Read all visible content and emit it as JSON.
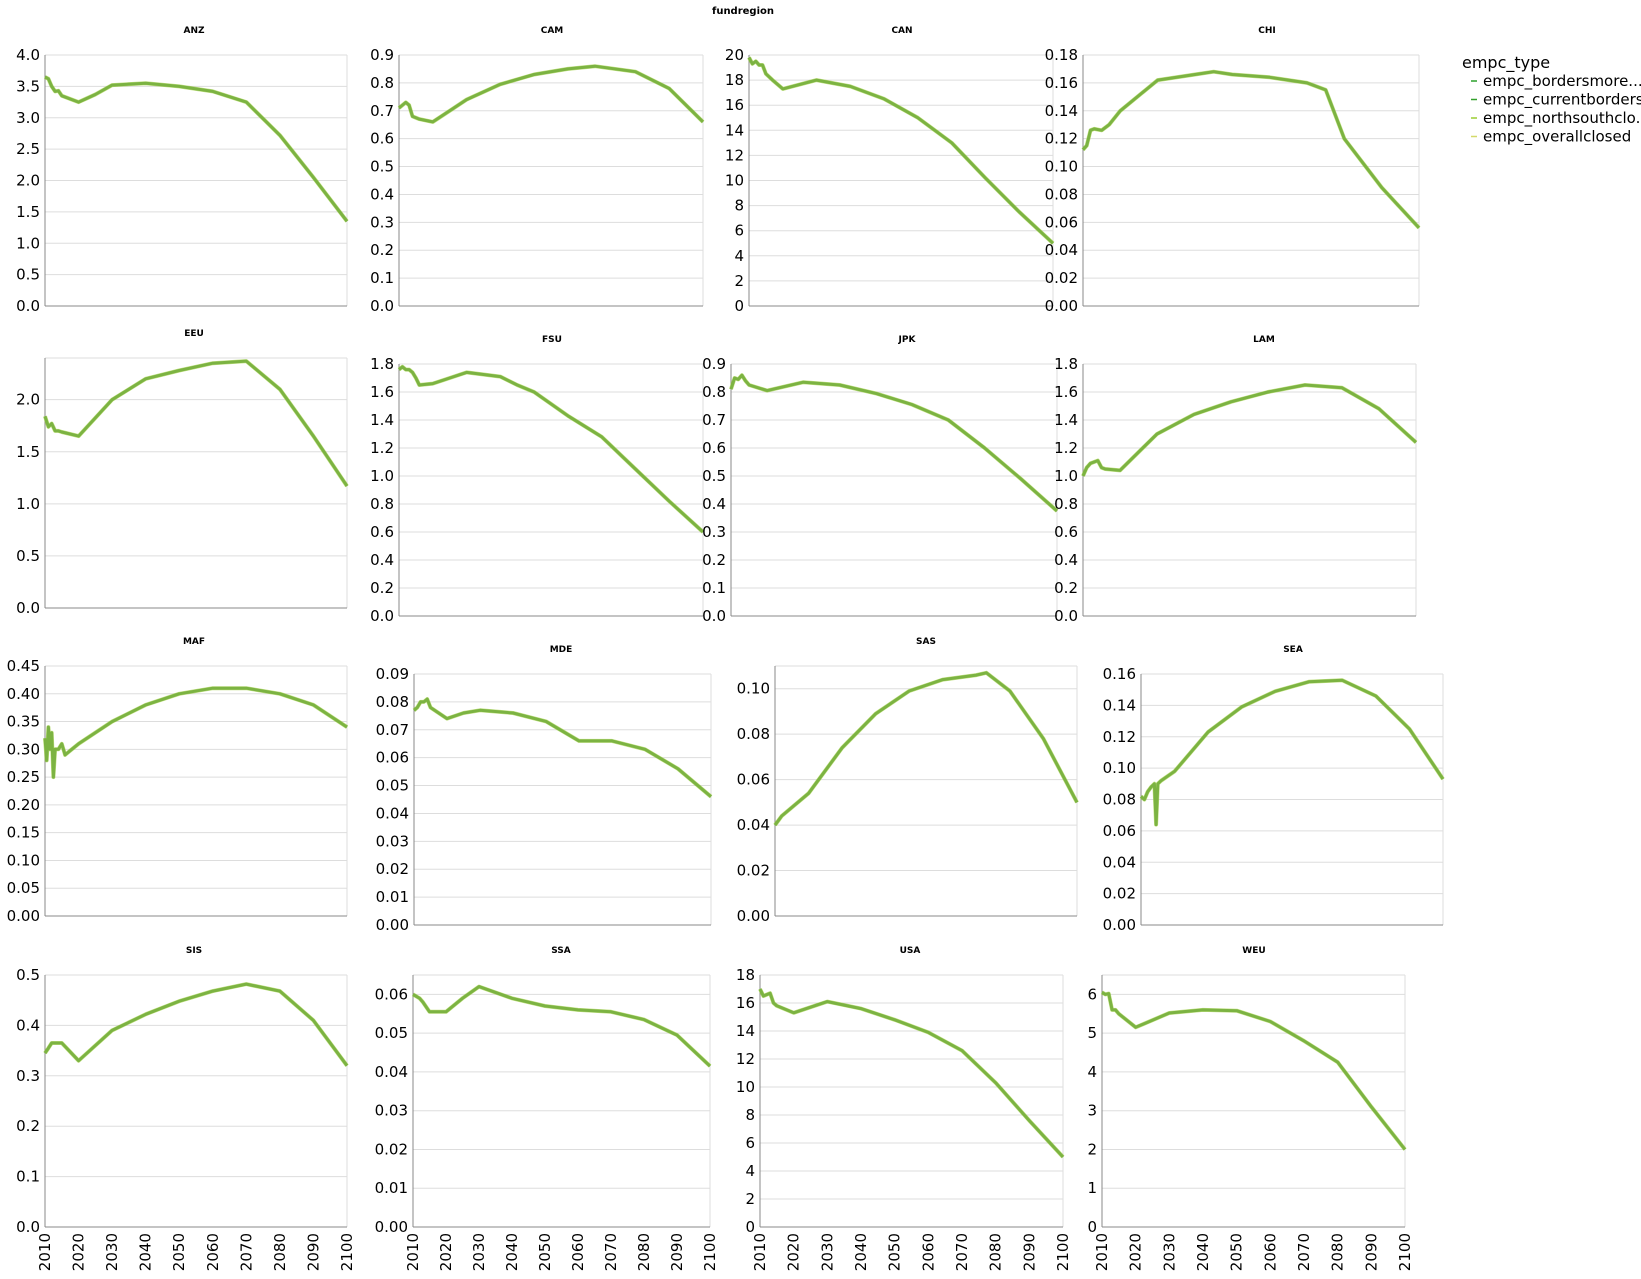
{
  "figure_title": "fundregion",
  "legend": {
    "title": "empc_type",
    "items": [
      {
        "label": "empc_bordersmore...",
        "color": "#2ca02c"
      },
      {
        "label": "empc_currentborders",
        "color": "#33a02c"
      },
      {
        "label": "empc_northsouthclo...",
        "color": "#9acd32"
      },
      {
        "label": "empc_overallclosed",
        "color": "#d4d96a"
      }
    ]
  },
  "colors": {
    "line": "#7cb342",
    "grid": "#dddddd",
    "axis": "#888888"
  },
  "chart_data": [
    {
      "type": "line",
      "title": "ANZ",
      "xlim": [
        2010,
        2100
      ],
      "ylim": [
        0,
        4
      ],
      "x_ticks": [
        "2010",
        "2020",
        "2030",
        "2040",
        "2050",
        "2060",
        "2070",
        "2080",
        "2090",
        "2100"
      ],
      "y_ticks": [
        "0.0",
        "0.5",
        "1.0",
        "1.5",
        "2.0",
        "2.5",
        "3.0",
        "3.5",
        "4.0"
      ],
      "y_tick_values": [
        0,
        0.5,
        1,
        1.5,
        2,
        2.5,
        3,
        3.5,
        4
      ],
      "x": [
        2010,
        2011,
        2012,
        2013,
        2014,
        2015,
        2020,
        2025,
        2030,
        2040,
        2050,
        2060,
        2070,
        2080,
        2090,
        2100
      ],
      "y": [
        3.65,
        3.62,
        3.5,
        3.42,
        3.43,
        3.35,
        3.25,
        3.37,
        3.52,
        3.55,
        3.5,
        3.42,
        3.25,
        2.72,
        2.05,
        1.35
      ]
    },
    {
      "type": "line",
      "title": "CAM",
      "xlim": [
        2010,
        2100
      ],
      "ylim": [
        0,
        0.9
      ],
      "x_ticks": [
        "2010",
        "2020",
        "2030",
        "2040",
        "2050",
        "2060",
        "2070",
        "2080",
        "2090",
        "2100"
      ],
      "y_ticks": [
        "0.0",
        "0.1",
        "0.2",
        "0.3",
        "0.4",
        "0.5",
        "0.6",
        "0.7",
        "0.8",
        "0.9"
      ],
      "y_tick_values": [
        0,
        0.1,
        0.2,
        0.3,
        0.4,
        0.5,
        0.6,
        0.7,
        0.8,
        0.9
      ],
      "x": [
        2010,
        2012,
        2013,
        2014,
        2016,
        2020,
        2025,
        2030,
        2040,
        2050,
        2060,
        2068,
        2080,
        2090,
        2100
      ],
      "y": [
        0.71,
        0.73,
        0.72,
        0.68,
        0.67,
        0.66,
        0.7,
        0.74,
        0.795,
        0.83,
        0.85,
        0.86,
        0.84,
        0.78,
        0.66
      ]
    },
    {
      "type": "line",
      "title": "CAN",
      "xlim": [
        2010,
        2100
      ],
      "ylim": [
        0,
        20
      ],
      "x_ticks": [
        "2010",
        "2020",
        "2030",
        "2040",
        "2050",
        "2060",
        "2070",
        "2080",
        "2090",
        "2100"
      ],
      "y_ticks": [
        "0",
        "2",
        "4",
        "6",
        "8",
        "10",
        "12",
        "14",
        "16",
        "18",
        "20"
      ],
      "y_tick_values": [
        0,
        2,
        4,
        6,
        8,
        10,
        12,
        14,
        16,
        18,
        20
      ],
      "x": [
        2010,
        2011,
        2012,
        2013,
        2014,
        2015,
        2017,
        2020,
        2030,
        2040,
        2050,
        2060,
        2070,
        2080,
        2090,
        2100
      ],
      "y": [
        19.8,
        19.3,
        19.5,
        19.2,
        19.2,
        18.5,
        18.0,
        17.3,
        18.0,
        17.5,
        16.5,
        15.0,
        13.0,
        10.2,
        7.5,
        5.0
      ]
    },
    {
      "type": "line",
      "title": "CHI",
      "xlim": [
        2010,
        2100
      ],
      "ylim": [
        0,
        0.18
      ],
      "x_ticks": [
        "2010",
        "2020",
        "2030",
        "2040",
        "2050",
        "2060",
        "2070",
        "2080",
        "2090",
        "2100"
      ],
      "y_ticks": [
        "0.00",
        "0.02",
        "0.04",
        "0.06",
        "0.08",
        "0.10",
        "0.12",
        "0.14",
        "0.16",
        "0.18"
      ],
      "y_tick_values": [
        0,
        0.02,
        0.04,
        0.06,
        0.08,
        0.1,
        0.12,
        0.14,
        0.16,
        0.18
      ],
      "x": [
        2010,
        2011,
        2012,
        2013,
        2015,
        2017,
        2020,
        2030,
        2040,
        2045,
        2050,
        2060,
        2070,
        2075,
        2080,
        2090,
        2100
      ],
      "y": [
        0.112,
        0.115,
        0.126,
        0.127,
        0.126,
        0.13,
        0.14,
        0.162,
        0.166,
        0.168,
        0.166,
        0.164,
        0.16,
        0.155,
        0.12,
        0.085,
        0.056
      ]
    },
    {
      "type": "line",
      "title": "EEU",
      "xlim": [
        2010,
        2100
      ],
      "ylim": [
        0,
        2.4
      ],
      "x_ticks": [
        "2010",
        "2020",
        "2030",
        "2040",
        "2050",
        "2060",
        "2070",
        "2080",
        "2090",
        "2100"
      ],
      "y_ticks": [
        "0.0",
        "0.5",
        "1.0",
        "1.5",
        "2.0"
      ],
      "y_tick_values": [
        0,
        0.5,
        1,
        1.5,
        2
      ],
      "x": [
        2010,
        2011,
        2012,
        2013,
        2014,
        2015,
        2020,
        2030,
        2040,
        2050,
        2060,
        2070,
        2080,
        2090,
        2100
      ],
      "y": [
        1.84,
        1.74,
        1.77,
        1.7,
        1.7,
        1.69,
        1.65,
        2.0,
        2.2,
        2.28,
        2.35,
        2.37,
        2.1,
        1.65,
        1.17
      ]
    },
    {
      "type": "line",
      "title": "FSU",
      "xlim": [
        2010,
        2100
      ],
      "ylim": [
        0,
        1.8
      ],
      "x_ticks": [
        "2010",
        "2020",
        "2030",
        "2040",
        "2050",
        "2060",
        "2070",
        "2080",
        "2090",
        "2100"
      ],
      "y_ticks": [
        "0.0",
        "0.2",
        "0.4",
        "0.6",
        "0.8",
        "1.0",
        "1.2",
        "1.4",
        "1.6",
        "1.8"
      ],
      "y_tick_values": [
        0,
        0.2,
        0.4,
        0.6,
        0.8,
        1,
        1.2,
        1.4,
        1.6,
        1.8
      ],
      "x": [
        2010,
        2011,
        2012,
        2013,
        2014,
        2015,
        2016,
        2020,
        2025,
        2030,
        2040,
        2045,
        2050,
        2060,
        2070,
        2080,
        2090,
        2100
      ],
      "y": [
        1.76,
        1.78,
        1.76,
        1.76,
        1.74,
        1.7,
        1.65,
        1.66,
        1.7,
        1.74,
        1.71,
        1.65,
        1.6,
        1.43,
        1.28,
        1.05,
        0.82,
        0.6
      ]
    },
    {
      "type": "line",
      "title": "JPK",
      "xlim": [
        2010,
        2100
      ],
      "ylim": [
        0,
        0.9
      ],
      "x_ticks": [
        "2010",
        "2020",
        "2030",
        "2040",
        "2050",
        "2060",
        "2070",
        "2080",
        "2090",
        "2100"
      ],
      "y_ticks": [
        "0.0",
        "0.1",
        "0.2",
        "0.3",
        "0.4",
        "0.5",
        "0.6",
        "0.7",
        "0.8",
        "0.9"
      ],
      "y_tick_values": [
        0,
        0.1,
        0.2,
        0.3,
        0.4,
        0.5,
        0.6,
        0.7,
        0.8,
        0.9
      ],
      "x": [
        2010,
        2011,
        2012,
        2013,
        2014,
        2015,
        2020,
        2030,
        2040,
        2050,
        2060,
        2070,
        2080,
        2090,
        2100
      ],
      "y": [
        0.81,
        0.85,
        0.845,
        0.86,
        0.84,
        0.825,
        0.805,
        0.835,
        0.825,
        0.795,
        0.755,
        0.7,
        0.6,
        0.49,
        0.375
      ]
    },
    {
      "type": "line",
      "title": "LAM",
      "xlim": [
        2010,
        2100
      ],
      "ylim": [
        0,
        1.8
      ],
      "x_ticks": [
        "2010",
        "2020",
        "2030",
        "2040",
        "2050",
        "2060",
        "2070",
        "2080",
        "2090",
        "2100"
      ],
      "y_ticks": [
        "0.0",
        "0.2",
        "0.4",
        "0.6",
        "0.8",
        "1.0",
        "1.2",
        "1.4",
        "1.6",
        "1.8"
      ],
      "y_tick_values": [
        0,
        0.2,
        0.4,
        0.6,
        0.8,
        1,
        1.2,
        1.4,
        1.6,
        1.8
      ],
      "x": [
        2010,
        2011,
        2012,
        2013,
        2014,
        2015,
        2016,
        2020,
        2030,
        2040,
        2050,
        2060,
        2070,
        2080,
        2090,
        2100
      ],
      "y": [
        1.0,
        1.06,
        1.09,
        1.1,
        1.11,
        1.06,
        1.05,
        1.04,
        1.3,
        1.44,
        1.53,
        1.6,
        1.65,
        1.63,
        1.48,
        1.24
      ]
    },
    {
      "type": "line",
      "title": "MAF",
      "xlim": [
        2010,
        2100
      ],
      "ylim": [
        0,
        0.45
      ],
      "x_ticks": [
        "2010",
        "2020",
        "2030",
        "2040",
        "2050",
        "2060",
        "2070",
        "2080",
        "2090",
        "2100"
      ],
      "y_ticks": [
        "0.00",
        "0.05",
        "0.10",
        "0.15",
        "0.20",
        "0.25",
        "0.30",
        "0.35",
        "0.40",
        "0.45"
      ],
      "y_tick_values": [
        0,
        0.05,
        0.1,
        0.15,
        0.2,
        0.25,
        0.3,
        0.35,
        0.4,
        0.45
      ],
      "x": [
        2010,
        2010.5,
        2011,
        2011.5,
        2012,
        2012.5,
        2013,
        2014,
        2015,
        2016,
        2018,
        2020,
        2025,
        2030,
        2040,
        2050,
        2060,
        2070,
        2080,
        2090,
        2100
      ],
      "y": [
        0.32,
        0.28,
        0.34,
        0.3,
        0.33,
        0.25,
        0.3,
        0.3,
        0.31,
        0.29,
        0.3,
        0.31,
        0.33,
        0.35,
        0.38,
        0.4,
        0.41,
        0.41,
        0.4,
        0.38,
        0.34
      ]
    },
    {
      "type": "line",
      "title": "MDE",
      "xlim": [
        2010,
        2100
      ],
      "ylim": [
        0,
        0.09
      ],
      "x_ticks": [
        "2010",
        "2020",
        "2030",
        "2040",
        "2050",
        "2060",
        "2070",
        "2080",
        "2090",
        "2100"
      ],
      "y_ticks": [
        "0.00",
        "0.01",
        "0.02",
        "0.03",
        "0.04",
        "0.05",
        "0.06",
        "0.07",
        "0.08",
        "0.09"
      ],
      "y_tick_values": [
        0,
        0.01,
        0.02,
        0.03,
        0.04,
        0.05,
        0.06,
        0.07,
        0.08,
        0.09
      ],
      "x": [
        2010,
        2011,
        2012,
        2013,
        2014,
        2015,
        2020,
        2025,
        2030,
        2040,
        2050,
        2060,
        2070,
        2080,
        2090,
        2100
      ],
      "y": [
        0.077,
        0.078,
        0.08,
        0.08,
        0.081,
        0.078,
        0.074,
        0.076,
        0.077,
        0.076,
        0.073,
        0.066,
        0.066,
        0.063,
        0.056,
        0.046
      ]
    },
    {
      "type": "line",
      "title": "SAS",
      "xlim": [
        2010,
        2100
      ],
      "ylim": [
        0,
        0.11
      ],
      "x_ticks": [
        "2010",
        "2020",
        "2030",
        "2040",
        "2050",
        "2060",
        "2070",
        "2080",
        "2090",
        "2100"
      ],
      "y_ticks": [
        "0.00",
        "0.02",
        "0.04",
        "0.06",
        "0.08",
        "0.10"
      ],
      "y_tick_values": [
        0,
        0.02,
        0.04,
        0.06,
        0.08,
        0.1
      ],
      "x": [
        2010,
        2011,
        2012,
        2020,
        2030,
        2040,
        2050,
        2060,
        2070,
        2073,
        2080,
        2090,
        2100
      ],
      "y": [
        0.04,
        0.042,
        0.044,
        0.054,
        0.074,
        0.089,
        0.099,
        0.104,
        0.106,
        0.107,
        0.099,
        0.078,
        0.05
      ]
    },
    {
      "type": "line",
      "title": "SEA",
      "xlim": [
        2010,
        2100
      ],
      "ylim": [
        0,
        0.16
      ],
      "x_ticks": [
        "2010",
        "2020",
        "2030",
        "2040",
        "2050",
        "2060",
        "2070",
        "2080",
        "2090",
        "2100"
      ],
      "y_ticks": [
        "0.00",
        "0.02",
        "0.04",
        "0.06",
        "0.08",
        "0.10",
        "0.12",
        "0.14",
        "0.16"
      ],
      "y_tick_values": [
        0,
        0.02,
        0.04,
        0.06,
        0.08,
        0.1,
        0.12,
        0.14,
        0.16
      ],
      "x": [
        2010,
        2011,
        2012,
        2013,
        2014,
        2014.5,
        2015,
        2016,
        2020,
        2030,
        2040,
        2050,
        2060,
        2070,
        2080,
        2090,
        2100
      ],
      "y": [
        0.082,
        0.08,
        0.085,
        0.088,
        0.09,
        0.064,
        0.09,
        0.092,
        0.098,
        0.123,
        0.139,
        0.149,
        0.155,
        0.156,
        0.146,
        0.125,
        0.093
      ]
    },
    {
      "type": "line",
      "title": "SIS",
      "xlim": [
        2010,
        2100
      ],
      "ylim": [
        0,
        0.5
      ],
      "x_ticks": [
        "2010",
        "2020",
        "2030",
        "2040",
        "2050",
        "2060",
        "2070",
        "2080",
        "2090",
        "2100"
      ],
      "y_ticks": [
        "0.0",
        "0.1",
        "0.2",
        "0.3",
        "0.4",
        "0.5"
      ],
      "y_tick_values": [
        0,
        0.1,
        0.2,
        0.3,
        0.4,
        0.5
      ],
      "x": [
        2010,
        2011,
        2012,
        2013,
        2015,
        2020,
        2030,
        2040,
        2050,
        2060,
        2070,
        2080,
        2090,
        2100
      ],
      "y": [
        0.345,
        0.355,
        0.365,
        0.365,
        0.365,
        0.33,
        0.39,
        0.422,
        0.448,
        0.468,
        0.482,
        0.468,
        0.41,
        0.32
      ]
    },
    {
      "type": "line",
      "title": "SSA",
      "xlim": [
        2010,
        2100
      ],
      "ylim": [
        0,
        0.065
      ],
      "x_ticks": [
        "2010",
        "2020",
        "2030",
        "2040",
        "2050",
        "2060",
        "2070",
        "2080",
        "2090",
        "2100"
      ],
      "y_ticks": [
        "0.00",
        "0.01",
        "0.02",
        "0.03",
        "0.04",
        "0.05",
        "0.06"
      ],
      "y_tick_values": [
        0,
        0.01,
        0.02,
        0.03,
        0.04,
        0.05,
        0.06
      ],
      "x": [
        2010,
        2012,
        2013,
        2015,
        2020,
        2025,
        2030,
        2040,
        2050,
        2060,
        2070,
        2080,
        2090,
        2100
      ],
      "y": [
        0.06,
        0.059,
        0.058,
        0.0555,
        0.0555,
        0.059,
        0.062,
        0.059,
        0.057,
        0.056,
        0.0555,
        0.0535,
        0.0495,
        0.0415
      ]
    },
    {
      "type": "line",
      "title": "USA",
      "xlim": [
        2010,
        2100
      ],
      "ylim": [
        0,
        18
      ],
      "x_ticks": [
        "2010",
        "2020",
        "2030",
        "2040",
        "2050",
        "2060",
        "2070",
        "2080",
        "2090",
        "2100"
      ],
      "y_ticks": [
        "0",
        "2",
        "4",
        "6",
        "8",
        "10",
        "12",
        "14",
        "16",
        "18"
      ],
      "y_tick_values": [
        0,
        2,
        4,
        6,
        8,
        10,
        12,
        14,
        16,
        18
      ],
      "x": [
        2010,
        2011,
        2012,
        2013,
        2014,
        2015,
        2020,
        2030,
        2040,
        2050,
        2060,
        2070,
        2080,
        2090,
        2100
      ],
      "y": [
        17.0,
        16.5,
        16.6,
        16.7,
        16.0,
        15.8,
        15.3,
        16.1,
        15.6,
        14.8,
        13.9,
        12.6,
        10.3,
        7.6,
        5.0
      ]
    },
    {
      "type": "line",
      "title": "WEU",
      "xlim": [
        2010,
        2100
      ],
      "ylim": [
        0,
        6.5
      ],
      "x_ticks": [
        "2010",
        "2020",
        "2030",
        "2040",
        "2050",
        "2060",
        "2070",
        "2080",
        "2090",
        "2100"
      ],
      "y_ticks": [
        "0",
        "1",
        "2",
        "3",
        "4",
        "5",
        "6"
      ],
      "y_tick_values": [
        0,
        1,
        2,
        3,
        4,
        5,
        6
      ],
      "x": [
        2010,
        2011,
        2012,
        2013,
        2014,
        2015,
        2020,
        2030,
        2040,
        2050,
        2060,
        2070,
        2080,
        2090,
        2100
      ],
      "y": [
        6.05,
        6.0,
        6.02,
        5.6,
        5.6,
        5.5,
        5.15,
        5.52,
        5.6,
        5.58,
        5.3,
        4.8,
        4.25,
        3.1,
        2.0
      ]
    }
  ]
}
